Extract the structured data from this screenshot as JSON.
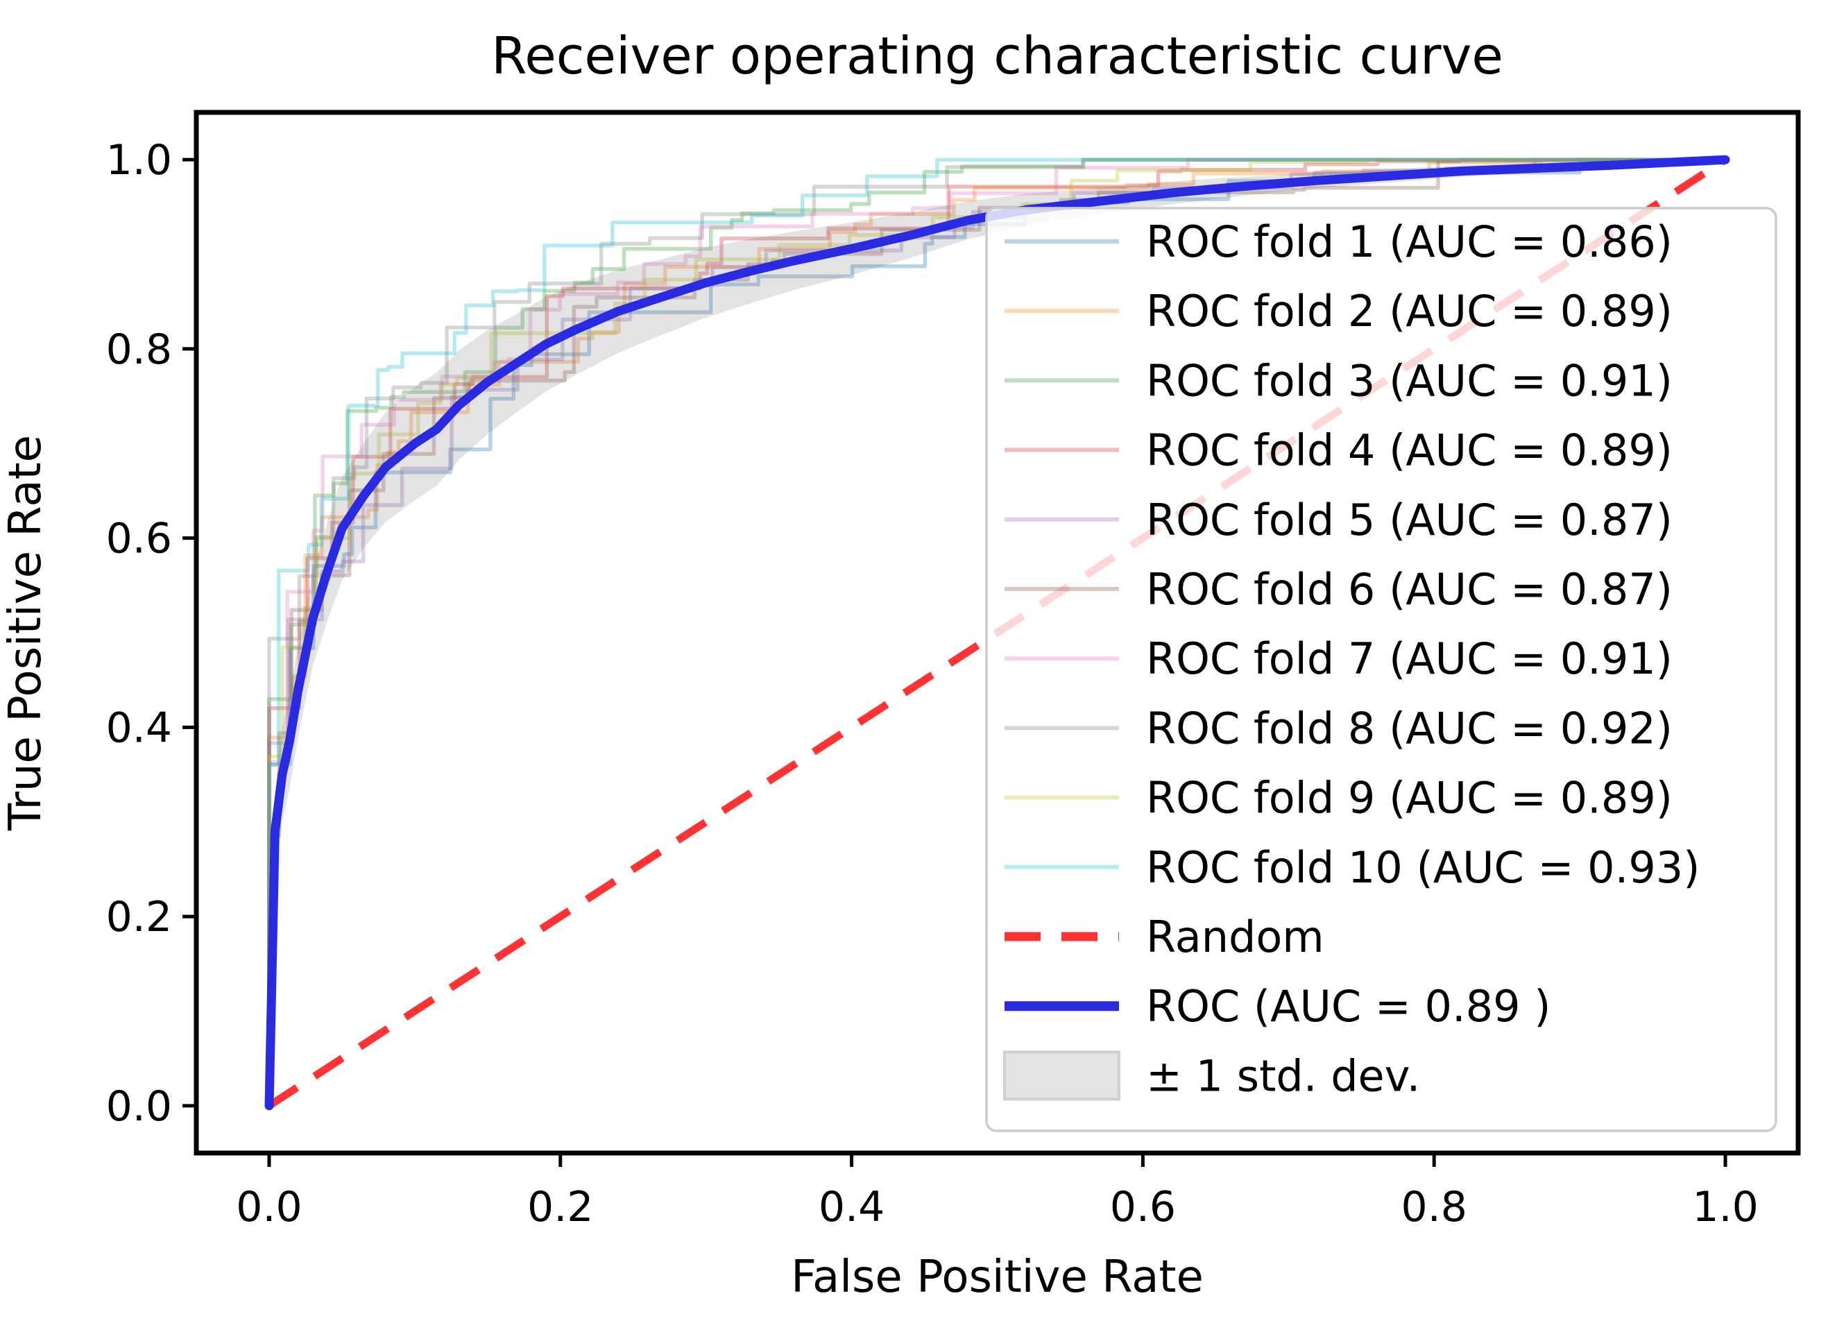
{
  "figure": {
    "title": "Receiver operating characteristic curve",
    "x_axis": {
      "label": "False Positive Rate",
      "tick_labels": [
        "0.0",
        "0.2",
        "0.4",
        "0.6",
        "0.8",
        "1.0"
      ]
    },
    "y_axis": {
      "label": "True Positive Rate",
      "tick_labels": [
        "0.0",
        "0.2",
        "0.4",
        "0.6",
        "0.8",
        "1.0"
      ]
    }
  },
  "chart_data": {
    "type": "line",
    "title": "Receiver operating characteristic curve",
    "xlabel": "False Positive Rate",
    "ylabel": "True Positive Rate",
    "xlim": [
      -0.05,
      1.05
    ],
    "ylim": [
      -0.05,
      1.05
    ],
    "x_ticks": [
      0.0,
      0.2,
      0.4,
      0.6,
      0.8,
      1.0
    ],
    "y_ticks": [
      0.0,
      0.2,
      0.4,
      0.6,
      0.8,
      1.0
    ],
    "grid": false,
    "legend_position": "right, spanning most of plot height",
    "legend_framealpha": 0.8,
    "folds": [
      {
        "label": "ROC fold 1 (AUC = 0.86)",
        "auc": 0.86,
        "color": "#1f77b4",
        "alpha": 0.32,
        "seed": 11,
        "shift": -0.048
      },
      {
        "label": "ROC fold 2 (AUC = 0.89)",
        "auc": 0.89,
        "color": "#ff7f0e",
        "alpha": 0.32,
        "seed": 22,
        "shift": 0.0
      },
      {
        "label": "ROC fold 3 (AUC = 0.91)",
        "auc": 0.91,
        "color": "#2ca02c",
        "alpha": 0.32,
        "seed": 33,
        "shift": 0.032
      },
      {
        "label": "ROC fold 4 (AUC = 0.89)",
        "auc": 0.89,
        "color": "#d62728",
        "alpha": 0.32,
        "seed": 44,
        "shift": 0.0
      },
      {
        "label": "ROC fold 5 (AUC = 0.87)",
        "auc": 0.87,
        "color": "#9467bd",
        "alpha": 0.32,
        "seed": 55,
        "shift": -0.032
      },
      {
        "label": "ROC fold 6 (AUC = 0.87)",
        "auc": 0.87,
        "color": "#8c564b",
        "alpha": 0.32,
        "seed": 66,
        "shift": -0.032
      },
      {
        "label": "ROC fold 7 (AUC = 0.91)",
        "auc": 0.91,
        "color": "#e377c2",
        "alpha": 0.32,
        "seed": 77,
        "shift": 0.032
      },
      {
        "label": "ROC fold 8 (AUC = 0.92)",
        "auc": 0.92,
        "color": "#7f7f7f",
        "alpha": 0.32,
        "seed": 88,
        "shift": 0.048
      },
      {
        "label": "ROC fold 9 (AUC = 0.89)",
        "auc": 0.89,
        "color": "#bcbd22",
        "alpha": 0.32,
        "seed": 99,
        "shift": 0.0
      },
      {
        "label": "ROC fold 10 (AUC = 0.93)",
        "auc": 0.93,
        "color": "#17becf",
        "alpha": 0.32,
        "seed": 110,
        "shift": 0.064
      }
    ],
    "random_line": {
      "label": "Random",
      "points": [
        [
          0,
          0
        ],
        [
          1,
          1
        ]
      ],
      "color": "#ff0000",
      "alpha": 0.8,
      "style": "dashed"
    },
    "mean_roc": {
      "label": "ROC (AUC = 0.89 )",
      "auc": 0.89,
      "color": "#2a2ae0",
      "x": [
        0,
        0.004,
        0.009,
        0.014,
        0.02,
        0.03,
        0.04,
        0.05,
        0.065,
        0.08,
        0.1,
        0.115,
        0.13,
        0.15,
        0.17,
        0.19,
        0.21,
        0.24,
        0.27,
        0.3,
        0.33,
        0.36,
        0.4,
        0.44,
        0.48,
        0.52,
        0.57,
        0.62,
        0.67,
        0.72,
        0.77,
        0.82,
        0.87,
        0.92,
        0.96,
        1.0
      ],
      "y": [
        0,
        0.29,
        0.35,
        0.385,
        0.44,
        0.515,
        0.565,
        0.61,
        0.645,
        0.675,
        0.7,
        0.715,
        0.74,
        0.765,
        0.785,
        0.805,
        0.82,
        0.84,
        0.855,
        0.87,
        0.882,
        0.893,
        0.906,
        0.92,
        0.936,
        0.947,
        0.956,
        0.965,
        0.972,
        0.978,
        0.983,
        0.988,
        0.991,
        0.994,
        0.997,
        1.0
      ]
    },
    "std_band": {
      "label": "± 1 std. dev.",
      "color": "#808080",
      "alpha": 0.22,
      "delta": [
        0,
        0.04,
        0.05,
        0.05,
        0.05,
        0.05,
        0.052,
        0.055,
        0.055,
        0.058,
        0.06,
        0.06,
        0.058,
        0.055,
        0.052,
        0.05,
        0.048,
        0.044,
        0.04,
        0.037,
        0.034,
        0.031,
        0.028,
        0.024,
        0.02,
        0.017,
        0.014,
        0.012,
        0.01,
        0.008,
        0.007,
        0.006,
        0.005,
        0.004,
        0.002,
        0
      ]
    }
  }
}
